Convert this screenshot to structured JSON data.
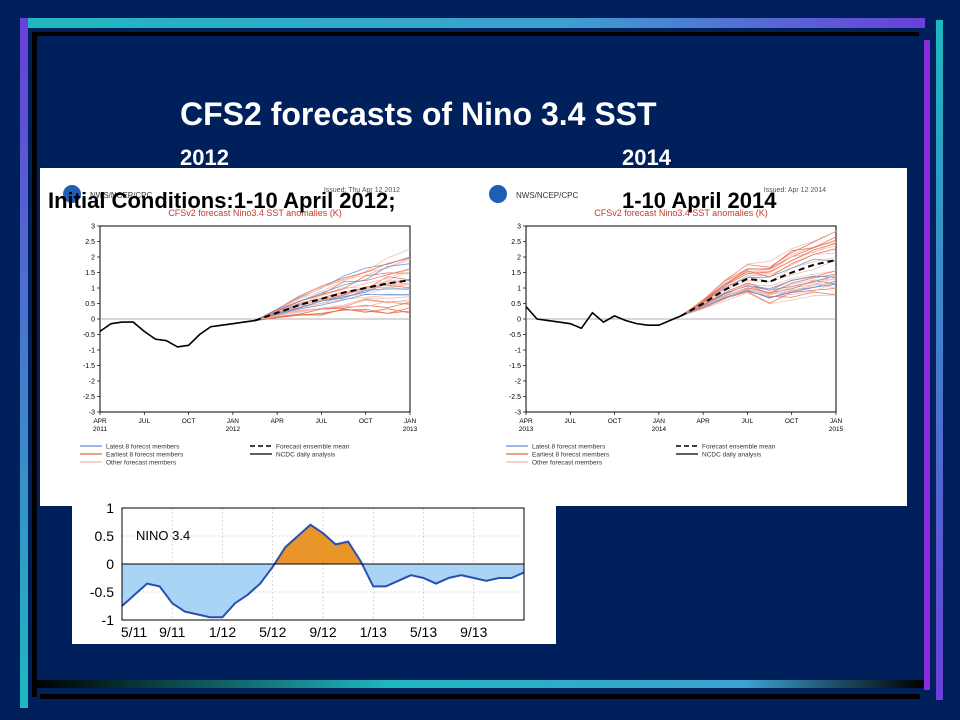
{
  "slide": {
    "title": "CFS2 forecasts of Nino 3.4 SST",
    "year_left": "2012",
    "year_right": "2014",
    "ic_label": "Initial Conditions:1-10 April 2012;",
    "ic_label_right": "1-10  April 2014",
    "colors": {
      "background": "#00205b",
      "accent_purple": "#8a2be2",
      "accent_cyan": "#1fb8c0"
    }
  },
  "chart_data": [
    {
      "type": "line",
      "id": "cfs-2012",
      "header_left": "NWS/NCEP/CPC",
      "header_right": "Issued: Thu Apr 12 2012",
      "title": "CFSv2 forecast Nino3.4 SST anomalies (K)",
      "ylim": [
        -3,
        3
      ],
      "y_ticks": [
        "3",
        "2.5",
        "2",
        "1.5",
        "1",
        "0.5",
        "0",
        "-0.5",
        "-1",
        "-1.5",
        "-2",
        "-2.5",
        "-3"
      ],
      "x_ticks": [
        "APR\n2011",
        "JUL",
        "OCT",
        "JAN\n2012",
        "APR",
        "JUL",
        "OCT",
        "JAN\n2013"
      ],
      "observed": {
        "name": "NCDC daily analysis",
        "x": [
          0,
          0.5,
          1,
          1.5,
          2,
          2.5,
          3,
          3.5,
          4,
          4.5,
          5,
          5.5,
          6,
          6.5,
          7
        ],
        "y": [
          -0.4,
          -0.15,
          -0.1,
          -0.1,
          -0.4,
          -0.65,
          -0.7,
          -0.9,
          -0.85,
          -0.5,
          -0.25,
          -0.2,
          -0.15,
          -0.1,
          -0.05
        ]
      },
      "ensemble_mean": {
        "name": "Forecast ensemble mean",
        "x": [
          7,
          8,
          9,
          10,
          11,
          12,
          13,
          14
        ],
        "y": [
          -0.05,
          0.2,
          0.45,
          0.65,
          0.85,
          1.0,
          1.15,
          1.25
        ]
      },
      "legend": [
        "Latest 8 forecst members",
        "Earliest 8 forecst members",
        "Other forecast members",
        "Forecast ensemble mean",
        "NCDC daily analysis"
      ]
    },
    {
      "type": "line",
      "id": "cfs-2014",
      "header_left": "NWS/NCEP/CPC",
      "header_right": "Issued: Apr 12 2014",
      "title": "CFSv2 forecast Nino3.4 SST anomalies (K)",
      "ylim": [
        -3,
        3
      ],
      "y_ticks": [
        "3",
        "2.5",
        "2",
        "1.5",
        "1",
        "0.5",
        "0",
        "-0.5",
        "-1",
        "-1.5",
        "-2",
        "-2.5",
        "-3"
      ],
      "x_ticks": [
        "APR\n2013",
        "JUL",
        "OCT",
        "JAN\n2014",
        "APR",
        "JUL",
        "OCT",
        "JAN\n2015"
      ],
      "observed": {
        "name": "NCDC daily analysis",
        "x": [
          0,
          0.5,
          1,
          1.5,
          2,
          2.5,
          3,
          3.5,
          4,
          4.5,
          5,
          5.5,
          6,
          6.5,
          7
        ],
        "y": [
          0.4,
          0.0,
          -0.05,
          -0.1,
          -0.15,
          -0.3,
          0.2,
          -0.1,
          0.1,
          -0.05,
          -0.15,
          -0.2,
          -0.2,
          -0.05,
          0.1
        ]
      },
      "ensemble_mean": {
        "name": "Forecast ensemble mean",
        "x": [
          7,
          8,
          9,
          10,
          11,
          12,
          13,
          14
        ],
        "y": [
          0.1,
          0.5,
          0.95,
          1.3,
          1.2,
          1.5,
          1.75,
          1.9
        ]
      },
      "legend": [
        "Latest 8 forecst members",
        "Earliest 8 forecst members",
        "Other forecast members",
        "Forecast ensemble mean",
        "NCDC daily analysis"
      ]
    },
    {
      "type": "area",
      "id": "nino34-observed",
      "title": "NINO 3.4",
      "ylim": [
        -1,
        1
      ],
      "y_ticks": [
        "1",
        "0.5",
        "0",
        "-0.5",
        "-1"
      ],
      "x_ticks": [
        "5/11",
        "9/11",
        "1/12",
        "5/12",
        "9/12",
        "1/13",
        "5/13",
        "9/13"
      ],
      "x": [
        0,
        1,
        2,
        3,
        4,
        5,
        6,
        7,
        8,
        9,
        10,
        11,
        12,
        13,
        14,
        15,
        16,
        17,
        18,
        19,
        20,
        21,
        22,
        23,
        24,
        25,
        26,
        27,
        28,
        29,
        30,
        31,
        32
      ],
      "y": [
        -0.75,
        -0.55,
        -0.35,
        -0.4,
        -0.7,
        -0.85,
        -0.9,
        -0.95,
        -0.95,
        -0.7,
        -0.55,
        -0.35,
        -0.05,
        0.3,
        0.5,
        0.7,
        0.55,
        0.35,
        0.4,
        0.05,
        -0.4,
        -0.4,
        -0.3,
        -0.2,
        -0.25,
        -0.35,
        -0.25,
        -0.2,
        -0.25,
        -0.3,
        -0.25,
        -0.25,
        -0.15
      ]
    }
  ]
}
